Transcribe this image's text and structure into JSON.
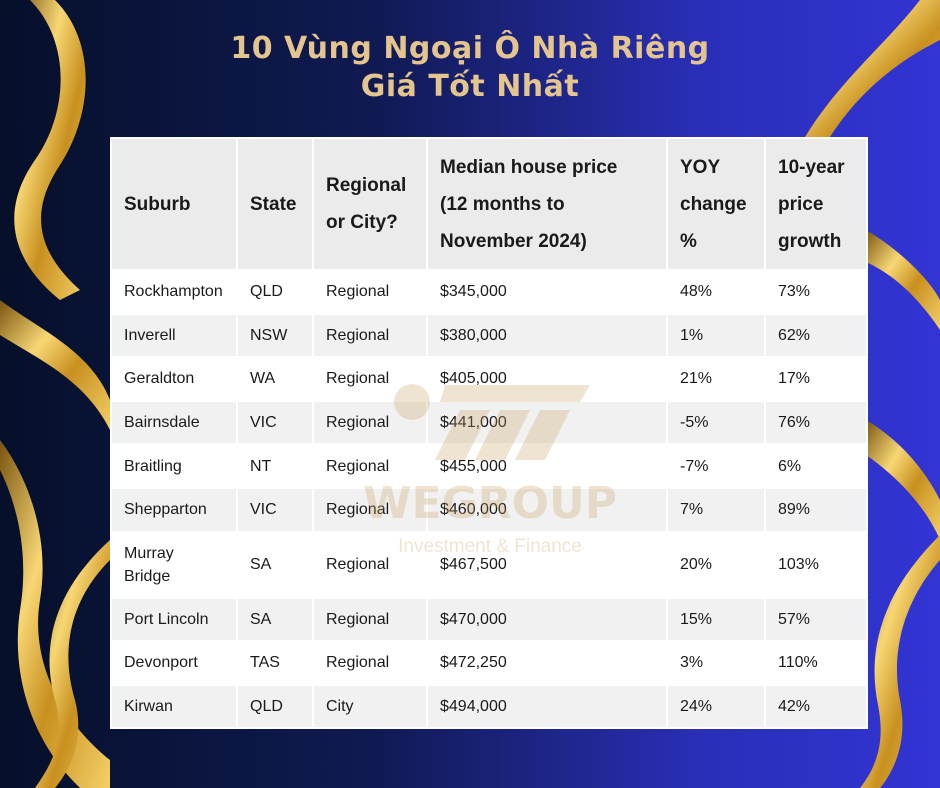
{
  "title": {
    "line1": "10 Vùng Ngoại Ô Nhà Riêng",
    "line2": "Giá Tốt Nhất"
  },
  "table": {
    "headers": {
      "suburb": "Suburb",
      "state": "State",
      "regional_line1": "Regional",
      "regional_line2": "or City?",
      "median_line1": "Median house price",
      "median_line2": "(12 months to",
      "median_line3": "November 2024)",
      "yoy_line1": "YOY",
      "yoy_line2": "change",
      "yoy_line3": "%",
      "growth_line1": "10-year",
      "growth_line2": "price",
      "growth_line3": "growth"
    },
    "rows": [
      {
        "suburb": "Rockhampton",
        "state": "QLD",
        "type": "Regional",
        "median": "$345,000",
        "yoy": "48%",
        "growth": "73%"
      },
      {
        "suburb": "Inverell",
        "state": "NSW",
        "type": "Regional",
        "median": "$380,000",
        "yoy": "1%",
        "growth": "62%"
      },
      {
        "suburb": "Geraldton",
        "state": "WA",
        "type": "Regional",
        "median": "$405,000",
        "yoy": "21%",
        "growth": "17%"
      },
      {
        "suburb": "Bairnsdale",
        "state": "VIC",
        "type": "Regional",
        "median": "$441,000",
        "yoy": "-5%",
        "growth": "76%"
      },
      {
        "suburb": "Braitling",
        "state": "NT",
        "type": "Regional",
        "median": "$455,000",
        "yoy": "-7%",
        "growth": "6%"
      },
      {
        "suburb": "Shepparton",
        "state": "VIC",
        "type": "Regional",
        "median": "$460,000",
        "yoy": "7%",
        "growth": "89%"
      },
      {
        "suburb_line1": "Murray",
        "suburb_line2": "Bridge",
        "state": "SA",
        "type": "Regional",
        "median": "$467,500",
        "yoy": "20%",
        "growth": "103%"
      },
      {
        "suburb": "Port Lincoln",
        "state": "SA",
        "type": "Regional",
        "median": "$470,000",
        "yoy": "15%",
        "growth": "57%"
      },
      {
        "suburb": "Devonport",
        "state": "TAS",
        "type": "Regional",
        "median": "$472,250",
        "yoy": "3%",
        "growth": "110%"
      },
      {
        "suburb": "Kirwan",
        "state": "QLD",
        "type": "City",
        "median": "$494,000",
        "yoy": "24%",
        "growth": "42%"
      }
    ]
  },
  "watermark": {
    "name": "WEGROUP",
    "tagline": "Investment & Finance"
  },
  "colors": {
    "title": "#e5c58e",
    "ribbon": "#d9a93a",
    "header_bg": "#ebebeb",
    "row_alt_bg": "#f1f1f1"
  }
}
